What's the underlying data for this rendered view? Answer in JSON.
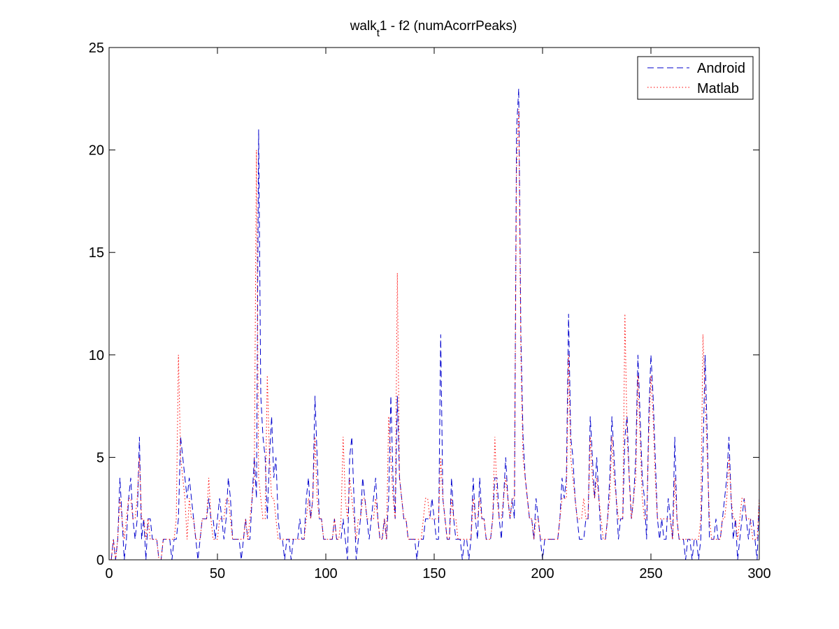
{
  "chart_data": {
    "type": "line",
    "title_main": "walk",
    "title_subscript": "t",
    "title_rest": "1 - f2 (numAcorrPeaks)",
    "xlabel": "",
    "ylabel": "",
    "xlim": [
      0,
      300
    ],
    "ylim": [
      0,
      25
    ],
    "xticks": [
      0,
      50,
      100,
      150,
      200,
      250,
      300
    ],
    "yticks": [
      0,
      5,
      10,
      15,
      20,
      25
    ],
    "grid": false,
    "legend_position": "top-right",
    "series": [
      {
        "name": "Android",
        "color": "#0000cc",
        "style": "dashed",
        "values": [
          0,
          1,
          0,
          1,
          4,
          2,
          0,
          1,
          3,
          4,
          2,
          1,
          2,
          6,
          1,
          2,
          0,
          2,
          2,
          1,
          1,
          1,
          0,
          0,
          1,
          1,
          1,
          1,
          0,
          1,
          1,
          2,
          6,
          5,
          4,
          3,
          4,
          3,
          2,
          1,
          0,
          1,
          2,
          2,
          2,
          3,
          2,
          2,
          1,
          2,
          3,
          2,
          1,
          2,
          4,
          3,
          1,
          1,
          1,
          1,
          0,
          1,
          2,
          1,
          1,
          3,
          5,
          3,
          21,
          8,
          6,
          5,
          2,
          5,
          7,
          4,
          5,
          2,
          1,
          1,
          0,
          1,
          1,
          0,
          1,
          1,
          1,
          2,
          1,
          1,
          3,
          4,
          2,
          3,
          8,
          5,
          2,
          2,
          1,
          1,
          1,
          1,
          1,
          2,
          1,
          1,
          1,
          2,
          1,
          0,
          5,
          6,
          3,
          0,
          1,
          2,
          4,
          3,
          2,
          1,
          2,
          3,
          4,
          2,
          1,
          1,
          2,
          1,
          3,
          8,
          4,
          2,
          8,
          4,
          3,
          2,
          2,
          1,
          1,
          1,
          1,
          0,
          1,
          1,
          1,
          2,
          2,
          2,
          3,
          2,
          1,
          1,
          11,
          3,
          2,
          1,
          1,
          4,
          2,
          1,
          1,
          1,
          0,
          1,
          1,
          0,
          1,
          4,
          2,
          1,
          4,
          2,
          2,
          1,
          1,
          1,
          2,
          4,
          4,
          2,
          1,
          3,
          5,
          3,
          2,
          3,
          2,
          21,
          23,
          11,
          6,
          4,
          3,
          2,
          2,
          1,
          3,
          2,
          1,
          0,
          1,
          1,
          1,
          1,
          1,
          1,
          1,
          2,
          4,
          3,
          4,
          12,
          6,
          5,
          3,
          2,
          1,
          1,
          1,
          2,
          2,
          7,
          5,
          3,
          5,
          3,
          1,
          1,
          1,
          2,
          4,
          7,
          5,
          3,
          1,
          2,
          2,
          6,
          7,
          4,
          2,
          3,
          5,
          10,
          7,
          4,
          3,
          1,
          7,
          10,
          8,
          5,
          2,
          1,
          2,
          1,
          1,
          3,
          2,
          1,
          6,
          2,
          1,
          1,
          1,
          0,
          1,
          1,
          0,
          1,
          1,
          0,
          1,
          5,
          10,
          6,
          1,
          1,
          1,
          2,
          1,
          1,
          2,
          3,
          4,
          6,
          3,
          1,
          2,
          0,
          1,
          2,
          3,
          2,
          1,
          2,
          2,
          1,
          0,
          3,
          5,
          4
        ]
      },
      {
        "name": "Matlab",
        "color": "#ff0000",
        "style": "dotted",
        "values": [
          0,
          1,
          0,
          1,
          3,
          2,
          1,
          2,
          3,
          3,
          2,
          2,
          3,
          5,
          2,
          2,
          1,
          2,
          1,
          1,
          1,
          1,
          0,
          0,
          1,
          1,
          1,
          1,
          1,
          1,
          2,
          10,
          5,
          4,
          3,
          1,
          3,
          2,
          2,
          1,
          1,
          1,
          2,
          2,
          2,
          4,
          2,
          1,
          1,
          1,
          2,
          2,
          2,
          3,
          3,
          2,
          1,
          1,
          1,
          1,
          1,
          1,
          2,
          1,
          2,
          3,
          4,
          20,
          4,
          3,
          2,
          2,
          9,
          5,
          3,
          3,
          2,
          1,
          1,
          1,
          1,
          1,
          1,
          1,
          1,
          1,
          1,
          1,
          1,
          1,
          2,
          3,
          2,
          3,
          6,
          3,
          2,
          2,
          1,
          1,
          1,
          1,
          1,
          2,
          1,
          1,
          2,
          6,
          3,
          2,
          4,
          3,
          2,
          1,
          2,
          2,
          3,
          3,
          2,
          2,
          2,
          2,
          3,
          2,
          1,
          1,
          2,
          1,
          7,
          5,
          3,
          2,
          14,
          4,
          3,
          2,
          2,
          1,
          1,
          1,
          1,
          1,
          1,
          1,
          2,
          3,
          3,
          2,
          2,
          2,
          2,
          2,
          5,
          3,
          2,
          1,
          1,
          3,
          2,
          2,
          1,
          1,
          1,
          1,
          1,
          1,
          1,
          3,
          2,
          2,
          3,
          2,
          2,
          1,
          1,
          1,
          2,
          6,
          3,
          2,
          2,
          3,
          4,
          3,
          2,
          3,
          3,
          19,
          22,
          10,
          5,
          4,
          3,
          2,
          2,
          1,
          2,
          2,
          1,
          1,
          1,
          1,
          1,
          1,
          1,
          1,
          1,
          2,
          3,
          3,
          3,
          10,
          5,
          4,
          3,
          2,
          2,
          2,
          3,
          2,
          2,
          6,
          4,
          3,
          4,
          3,
          2,
          1,
          1,
          2,
          3,
          6,
          4,
          3,
          2,
          2,
          2,
          12,
          6,
          4,
          2,
          3,
          4,
          9,
          6,
          3,
          2,
          2,
          6,
          9,
          7,
          4,
          2,
          2,
          2,
          2,
          2,
          2,
          2,
          1,
          4,
          2,
          1,
          1,
          1,
          1,
          1,
          1,
          1,
          1,
          1,
          1,
          2,
          11,
          8,
          5,
          2,
          1,
          1,
          1,
          1,
          1,
          2,
          2,
          3,
          5,
          3,
          2,
          2,
          1,
          2,
          3,
          3,
          2,
          2,
          2,
          1,
          1,
          1,
          3,
          5,
          3
        ]
      }
    ]
  }
}
